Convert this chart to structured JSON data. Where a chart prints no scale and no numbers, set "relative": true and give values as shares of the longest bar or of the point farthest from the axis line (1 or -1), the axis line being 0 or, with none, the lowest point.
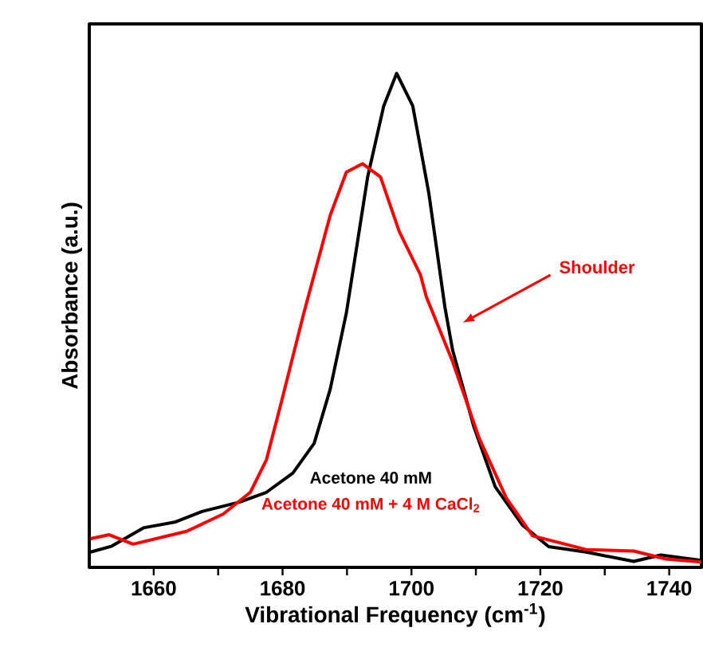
{
  "chart_data": {
    "type": "line",
    "relative": true,
    "xlabel": "Vibrational Frequency (cm$^{-1}$)",
    "ylabel": "Absorbance (a.u.)",
    "xlim": [
      1650,
      1745
    ],
    "xticks": [
      1660,
      {
        "value": 1670,
        "label": null
      },
      1680,
      {
        "value": 1690,
        "label": null
      },
      1700,
      {
        "value": 1710,
        "label": null
      },
      1720,
      {
        "value": 1730,
        "label": null
      },
      1740
    ],
    "legend": "bottom",
    "grid": false,
    "marker": "none",
    "line_style": "solid",
    "annotations": [
      "Shoulder"
    ],
    "series": [
      {
        "name": "Acetone 40 mM",
        "color": "#000000",
        "x": [
          1650.2,
          1653.5,
          1658.4,
          1663.4,
          1667.5,
          1673.3,
          1677.5,
          1681.6,
          1684.9,
          1687.4,
          1689.9,
          1693.2,
          1695.7,
          1697.7,
          1700.2,
          1702.7,
          1705.2,
          1706.4,
          1709.7,
          1713.0,
          1717.2,
          1721.3,
          1727.1,
          1734.5,
          1738.7,
          1745
        ],
        "values": [
          0.031,
          0.043,
          0.08,
          0.092,
          0.113,
          0.132,
          0.152,
          0.191,
          0.251,
          0.361,
          0.515,
          0.79,
          0.934,
          1.0,
          0.934,
          0.757,
          0.526,
          0.439,
          0.284,
          0.163,
          0.086,
          0.042,
          0.031,
          0.012,
          0.025,
          0.014
        ]
      },
      {
        "name": "Acetone 40 mM + 4 M CaCl$_{2}$",
        "color": "#ff0000",
        "x": [
          1650.2,
          1653.1,
          1656.8,
          1665.1,
          1670.8,
          1675.0,
          1677.5,
          1679.9,
          1683.3,
          1687.4,
          1689.9,
          1692.4,
          1695.2,
          1698.1,
          1701.4,
          1702.3,
          1706.4,
          1710.5,
          1714.7,
          1718.8,
          1727.1,
          1734.5,
          1739.5,
          1745
        ],
        "values": [
          0.058,
          0.066,
          0.047,
          0.073,
          0.108,
          0.152,
          0.218,
          0.339,
          0.515,
          0.713,
          0.8,
          0.817,
          0.79,
          0.68,
          0.592,
          0.548,
          0.416,
          0.262,
          0.141,
          0.064,
          0.036,
          0.033,
          0.017,
          0.011
        ]
      }
    ]
  }
}
